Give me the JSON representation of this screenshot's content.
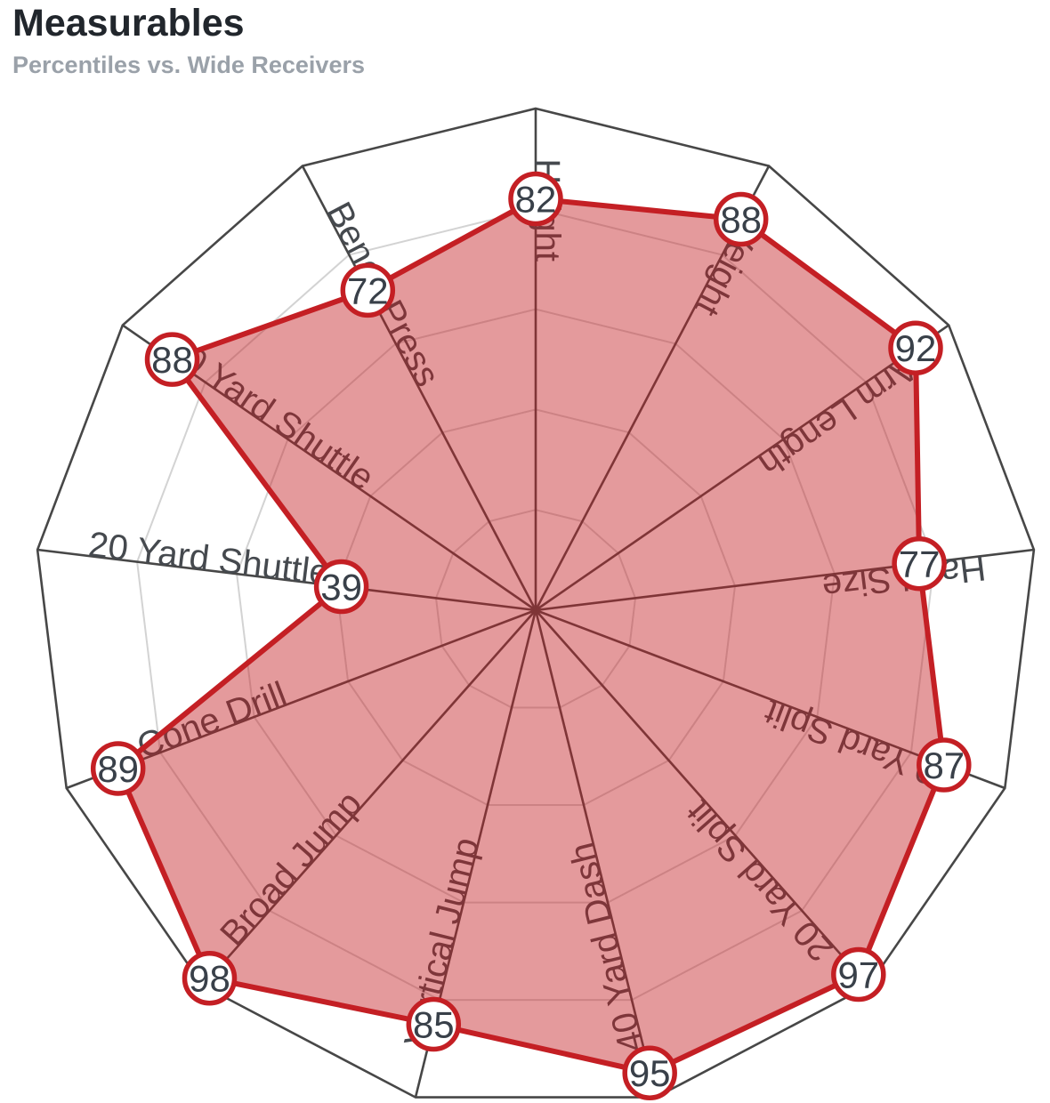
{
  "header": {
    "title": "Measurables",
    "subtitle": "Percentiles vs. Wide Receivers"
  },
  "chart_data": {
    "type": "radar",
    "title": "Measurables",
    "subtitle": "Percentiles vs. Wide Receivers",
    "categories": [
      "Height",
      "Weight",
      "Arm Length",
      "Hand Size",
      "10 Yard Split",
      "20 Yard Split",
      "40 Yard Dash",
      "Vertical Jump",
      "Broad Jump",
      "3-Cone Drill",
      "20 Yard Shuttle",
      "60 Yard Shuttle",
      "Bench Press"
    ],
    "values": [
      82,
      88,
      92,
      77,
      87,
      97,
      95,
      85,
      98,
      89,
      39,
      88,
      72
    ],
    "scale": {
      "min": 0,
      "max": 100,
      "rings": [
        20,
        40,
        60,
        80
      ],
      "outer": 100
    },
    "legend": "none",
    "grid": "polygon",
    "colors": {
      "series": "#c41f24",
      "fill_opacity": 0.45,
      "grid_light": "#d3d3d3",
      "grid_dark": "#474747",
      "axis_label": "#45494e",
      "marker_fill": "#ffffff",
      "marker_text": "#394049"
    }
  }
}
